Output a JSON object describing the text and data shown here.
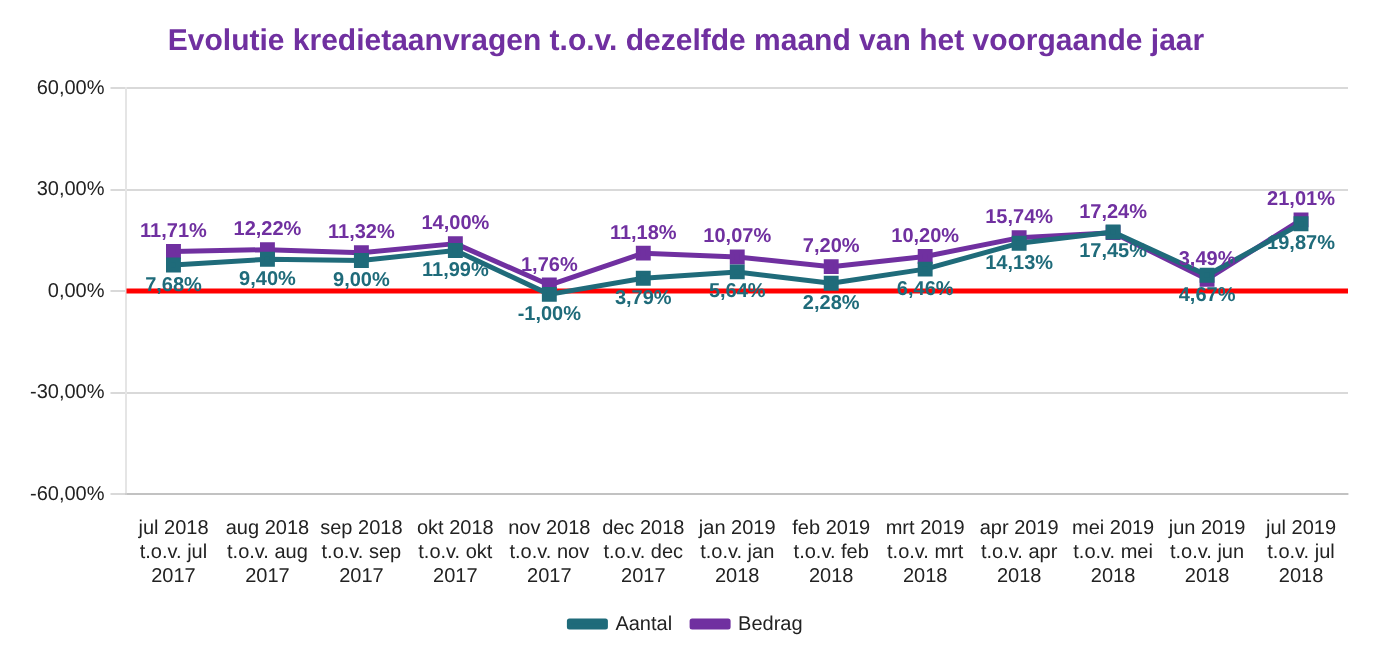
{
  "chart_data": {
    "type": "line",
    "title": "Evolutie kredietaanvragen t.o.v. dezelfde maand van het voorgaande jaar",
    "categories": [
      "jul 2018\nt.o.v. jul\n2017",
      "aug 2018\nt.o.v. aug\n2017",
      "sep 2018\nt.o.v. sep\n2017",
      "okt 2018\nt.o.v. okt\n2017",
      "nov 2018\nt.o.v. nov\n2017",
      "dec 2018\nt.o.v. dec\n2017",
      "jan 2019\nt.o.v. jan\n2018",
      "feb 2019\nt.o.v. feb\n2018",
      "mrt 2019\nt.o.v. mrt\n2018",
      "apr 2019\nt.o.v. apr\n2018",
      "mei 2019\nt.o.v. mei\n2018",
      "jun 2019\nt.o.v. jun\n2018",
      "jul 2019\nt.o.v. jul\n2018"
    ],
    "series": [
      {
        "name": "Aantal",
        "color": "#1f6b7a",
        "values": [
          7.68,
          9.4,
          9.0,
          11.99,
          -1.0,
          3.79,
          5.64,
          2.28,
          6.46,
          14.13,
          17.45,
          4.67,
          19.87
        ],
        "value_labels": [
          "7,68%",
          "9,40%",
          "9,00%",
          "11,99%",
          "-1,00%",
          "3,79%",
          "5,64%",
          "2,28%",
          "6,46%",
          "14,13%",
          "17,45%",
          "4,67%",
          "19,87%"
        ]
      },
      {
        "name": "Bedrag",
        "color": "#7030a0",
        "values": [
          11.71,
          12.22,
          11.32,
          14.0,
          1.76,
          11.18,
          10.07,
          7.2,
          10.2,
          15.74,
          17.24,
          3.49,
          21.01
        ],
        "value_labels": [
          "11,71%",
          "12,22%",
          "11,32%",
          "14,00%",
          "1,76%",
          "11,18%",
          "10,07%",
          "7,20%",
          "10,20%",
          "15,74%",
          "17,24%",
          "3,49%",
          "21,01%"
        ]
      }
    ],
    "ylim": [
      -60,
      60
    ],
    "yticks": [
      {
        "value": -60,
        "label": "-60,00%"
      },
      {
        "value": -30,
        "label": "-30,00%"
      },
      {
        "value": 0,
        "label": "0,00%"
      },
      {
        "value": 30,
        "label": "30,00%"
      },
      {
        "value": 60,
        "label": "60,00%"
      }
    ],
    "ref_lines": [
      {
        "axis": "y",
        "value": 0,
        "color": "#ff0000"
      }
    ],
    "grid": "y",
    "legend": "bottom",
    "marker": "square",
    "line_style": "solid"
  }
}
